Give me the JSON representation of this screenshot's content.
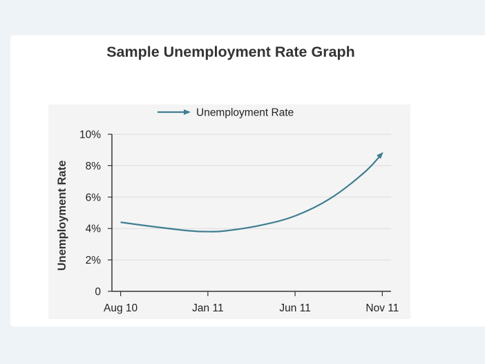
{
  "chart_data": {
    "type": "line",
    "title": "Sample Unemployment Rate Graph",
    "xlabel": "",
    "ylabel": "Unemployment Rate",
    "categories": [
      "Aug 10",
      "Jan 11",
      "Jun 11",
      "Nov 11"
    ],
    "x": [
      0,
      5,
      10,
      15
    ],
    "series": [
      {
        "name": "Unemployment Rate",
        "x": [
          0,
          2,
          4,
          5,
          6,
          8,
          10,
          12,
          14,
          15
        ],
        "values": [
          4.4,
          4.1,
          3.85,
          3.8,
          3.85,
          4.2,
          4.8,
          5.9,
          7.6,
          8.8
        ],
        "color": "#3e7e8f"
      }
    ],
    "ylim": [
      0,
      10
    ],
    "yticks": [
      "0",
      "2%",
      "4%",
      "6%",
      "8%",
      "10%"
    ],
    "ytick_values": [
      0,
      2,
      4,
      6,
      8,
      10
    ],
    "xlim": [
      -0.5,
      15.5
    ],
    "grid": true,
    "legend": "top",
    "end_marker": "arrow"
  },
  "colors": {
    "line": "#3e7e8f",
    "grid": "#dcdcdc",
    "axis": "#333333",
    "plot_background": "#f4f4f4"
  }
}
